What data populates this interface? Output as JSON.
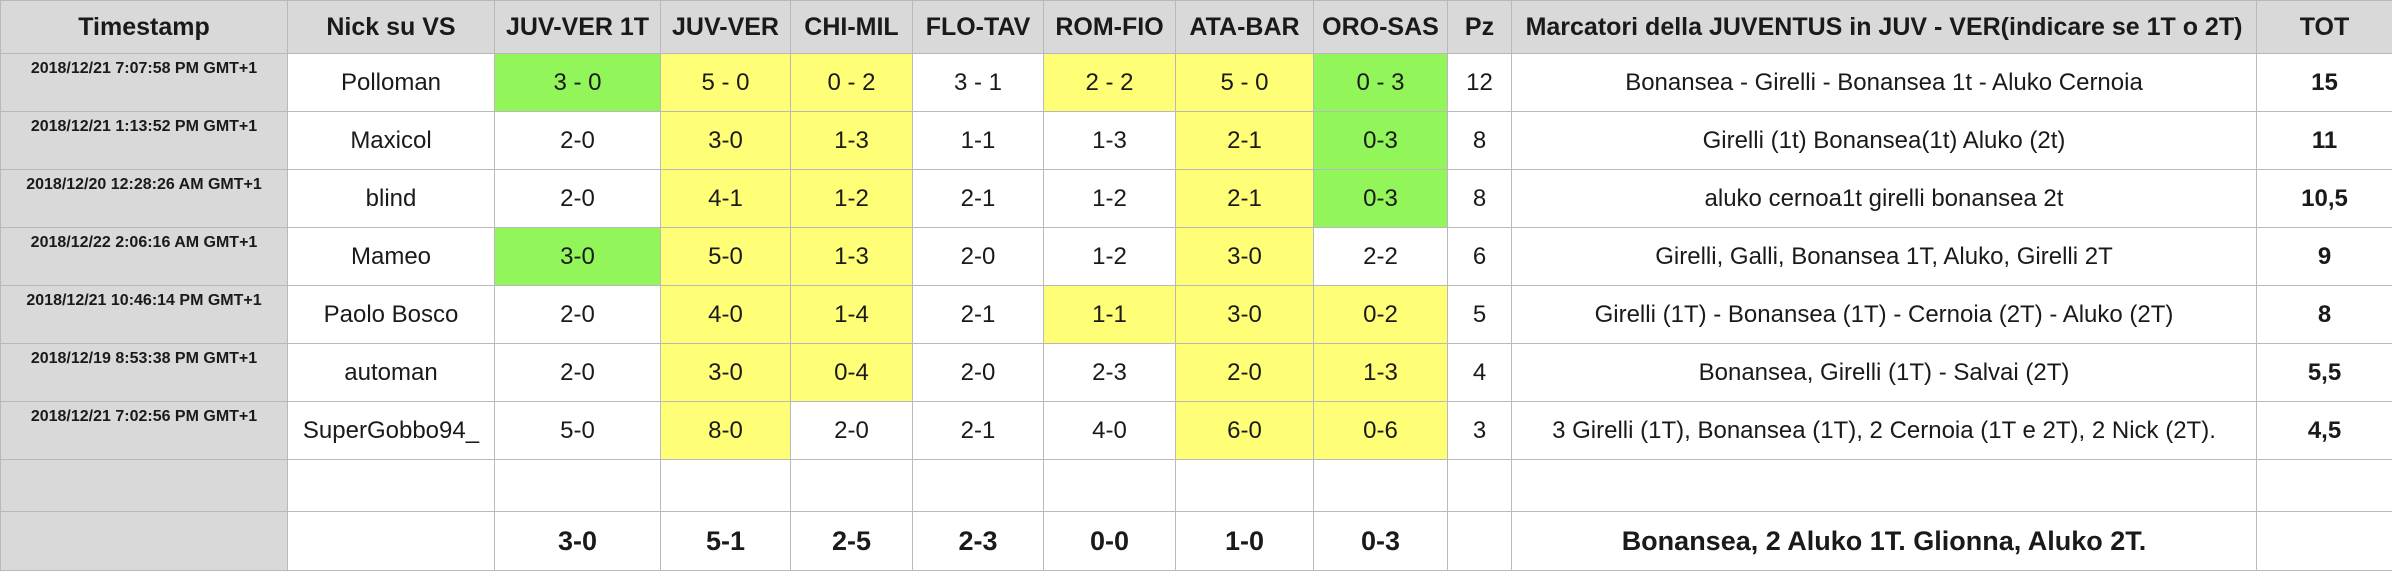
{
  "headers": [
    "Timestamp",
    "Nick su VS",
    "JUV-VER 1T",
    "JUV-VER",
    "CHI-MIL",
    "FLO-TAV",
    "ROM-FIO",
    "ATA-BAR",
    "ORO-SAS",
    "Pz",
    "Marcatori della JUVENTUS in JUV - VER(indicare se 1T o 2T)",
    "TOT"
  ],
  "highlight_colors": {
    "green": "#92f55a",
    "yellow": "#ffff77",
    "header_gray": "#d9d9d9"
  },
  "rows": [
    {
      "timestamp": "2018/12/21 7:07:58 PM GMT+1",
      "nick": "Polloman",
      "picks": [
        "3 - 0",
        "5 - 0",
        "0 - 2",
        "3 - 1",
        "2 - 2",
        "5 - 0",
        "0 - 3"
      ],
      "pick_highlight": [
        "green",
        "yellow",
        "yellow",
        "",
        "yellow",
        "yellow",
        "green"
      ],
      "pz": "12",
      "marcatori": "Bonansea - Girelli - Bonansea 1t - Aluko Cernoia",
      "tot": "15"
    },
    {
      "timestamp": "2018/12/21 1:13:52 PM GMT+1",
      "nick": "Maxicol",
      "picks": [
        "2-0",
        "3-0",
        "1-3",
        "1-1",
        "1-3",
        "2-1",
        "0-3"
      ],
      "pick_highlight": [
        "",
        "yellow",
        "yellow",
        "",
        "",
        "yellow",
        "green"
      ],
      "pz": "8",
      "marcatori": "Girelli (1t) Bonansea(1t) Aluko (2t)",
      "tot": "11"
    },
    {
      "timestamp": "2018/12/20 12:28:26 AM GMT+1",
      "nick": "blind",
      "picks": [
        "2-0",
        "4-1",
        "1-2",
        "2-1",
        "1-2",
        "2-1",
        "0-3"
      ],
      "pick_highlight": [
        "",
        "yellow",
        "yellow",
        "",
        "",
        "yellow",
        "green"
      ],
      "pz": "8",
      "marcatori": "aluko cernoa1t girelli bonansea 2t",
      "tot": "10,5"
    },
    {
      "timestamp": "2018/12/22 2:06:16 AM GMT+1",
      "nick": "Mameo",
      "picks": [
        "3-0",
        "5-0",
        "1-3",
        "2-0",
        "1-2",
        "3-0",
        "2-2"
      ],
      "pick_highlight": [
        "green",
        "yellow",
        "yellow",
        "",
        "",
        "yellow",
        ""
      ],
      "pz": "6",
      "marcatori": "Girelli, Galli, Bonansea 1T, Aluko, Girelli 2T",
      "tot": "9"
    },
    {
      "timestamp": "2018/12/21 10:46:14 PM GMT+1",
      "nick": "Paolo Bosco",
      "picks": [
        "2-0",
        "4-0",
        "1-4",
        "2-1",
        "1-1",
        "3-0",
        "0-2"
      ],
      "pick_highlight": [
        "",
        "yellow",
        "yellow",
        "",
        "yellow",
        "yellow",
        "yellow"
      ],
      "pz": "5",
      "marcatori": "Girelli  (1T)  -  Bonansea (1T)  -  Cernoia (2T) -  Aluko  (2T)",
      "tot": "8"
    },
    {
      "timestamp": "2018/12/19 8:53:38 PM GMT+1",
      "nick": "automan",
      "picks": [
        "2-0",
        "3-0",
        "0-4",
        "2-0",
        "2-3",
        "2-0",
        "1-3"
      ],
      "pick_highlight": [
        "",
        "yellow",
        "yellow",
        "",
        "",
        "yellow",
        "yellow"
      ],
      "pz": "4",
      "marcatori": "Bonansea, Girelli (1T) - Salvai (2T)",
      "tot": "5,5"
    },
    {
      "timestamp": "2018/12/21 7:02:56 PM GMT+1",
      "nick": "SuperGobbo94_",
      "picks": [
        "5-0",
        "8-0",
        "2-0",
        "2-1",
        "4-0",
        "6-0",
        "0-6"
      ],
      "pick_highlight": [
        "",
        "yellow",
        "",
        "",
        "",
        "yellow",
        "yellow"
      ],
      "pz": "3",
      "marcatori": "3 Girelli (1T), Bonansea (1T), 2 Cernoia (1T e 2T), 2 Nick (2T).",
      "tot": "4,5"
    }
  ],
  "results": {
    "scores": [
      "3-0",
      "5-1",
      "2-5",
      "2-3",
      "0-0",
      "1-0",
      "0-3"
    ],
    "marcatori": "Bonansea, 2 Aluko 1T. Glionna, Aluko 2T."
  }
}
